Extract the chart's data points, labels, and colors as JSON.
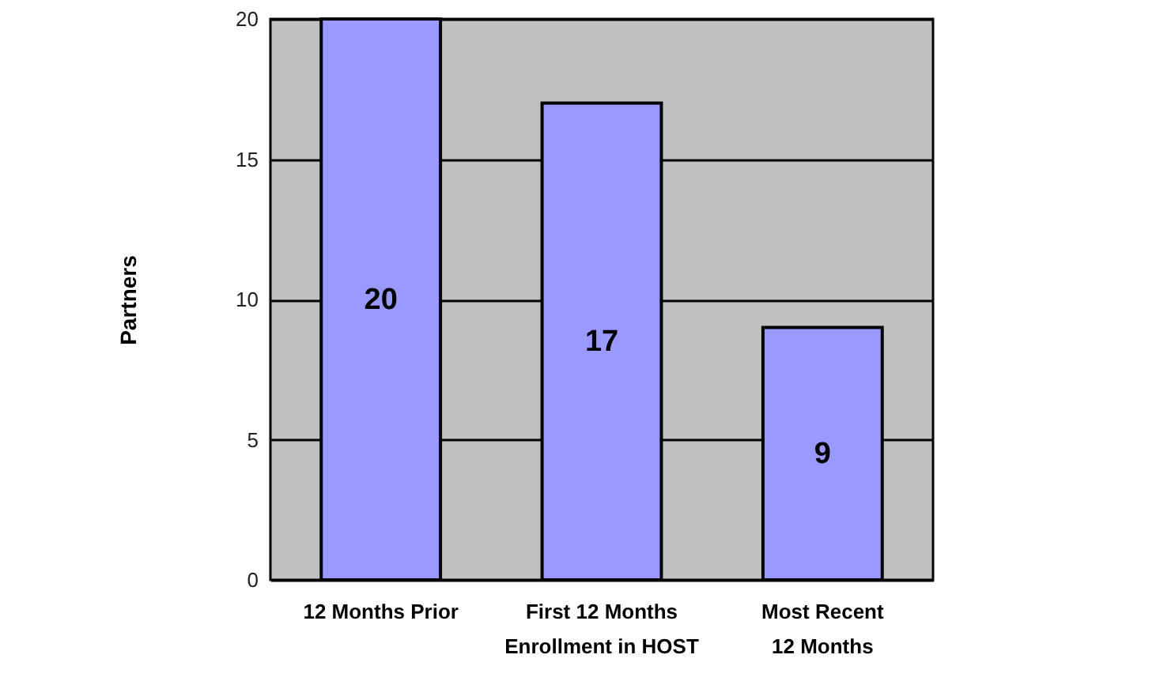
{
  "chart_data": {
    "type": "bar",
    "ylabel": "Partners",
    "categories": [
      "12 Months Prior",
      "First 12 Months Enrollment in HOST",
      "Most Recent 12 Months"
    ],
    "values": [
      20,
      17,
      9
    ],
    "color": "#9999ff",
    "data_labels": true,
    "ylim": [
      0,
      20
    ],
    "yticks": [
      0,
      5,
      10,
      15,
      20
    ],
    "grid": "y"
  }
}
